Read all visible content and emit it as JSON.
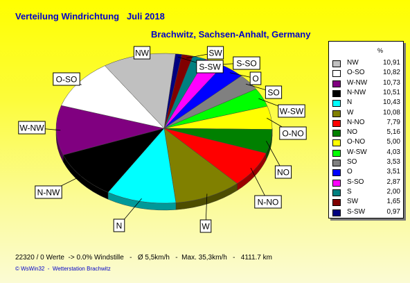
{
  "title": "Verteilung Windrichtung   Juli 2018",
  "subtitle": "Brachwitz, Sachsen-Anhalt, Germany",
  "legend_header": "%",
  "footer_text": "22320 / 0 Werte  -> 0.0% Windstille   -   Ø 5,5km/h   -  Max. 35,3km/h   -   4111.7 km",
  "copyright_text": "© WsWin32  -  Wetterstation Brachwitz",
  "chart_data": {
    "type": "pie",
    "title": "Verteilung Windrichtung   Juli 2018",
    "subtitle": "Brachwitz, Sachsen-Anhalt, Germany",
    "legend_position": "right",
    "slices": [
      {
        "label": "NW",
        "value": 10.91,
        "value_text": "10,91",
        "color": "#c0c0c0"
      },
      {
        "label": "O-SO",
        "value": 10.82,
        "value_text": "10,82",
        "color": "#ffffff"
      },
      {
        "label": "W-NW",
        "value": 10.73,
        "value_text": "10,73",
        "color": "#800080"
      },
      {
        "label": "N-NW",
        "value": 10.51,
        "value_text": "10,51",
        "color": "#000000"
      },
      {
        "label": "N",
        "value": 10.43,
        "value_text": "10,43",
        "color": "#00ffff"
      },
      {
        "label": "W",
        "value": 10.08,
        "value_text": "10,08",
        "color": "#808000"
      },
      {
        "label": "N-NO",
        "value": 7.79,
        "value_text": "7,79",
        "color": "#ff0000"
      },
      {
        "label": "NO",
        "value": 5.16,
        "value_text": "5,16",
        "color": "#008000"
      },
      {
        "label": "O-NO",
        "value": 5.0,
        "value_text": "5,00",
        "color": "#ffff00"
      },
      {
        "label": "W-SW",
        "value": 4.03,
        "value_text": "4,03",
        "color": "#00ff00"
      },
      {
        "label": "SO",
        "value": 3.53,
        "value_text": "3,53",
        "color": "#808080"
      },
      {
        "label": "O",
        "value": 3.51,
        "value_text": "3,51",
        "color": "#0000ff"
      },
      {
        "label": "S-SO",
        "value": 2.87,
        "value_text": "2,87",
        "color": "#ff00ff"
      },
      {
        "label": "S",
        "value": 2.0,
        "value_text": "2,00",
        "color": "#008080"
      },
      {
        "label": "SW",
        "value": 1.65,
        "value_text": "1,65",
        "color": "#800000"
      },
      {
        "label": "S-SW",
        "value": 0.97,
        "value_text": "0,97",
        "color": "#000080"
      }
    ],
    "pie_order": [
      "S-SW",
      "SW",
      "S",
      "S-SO",
      "O",
      "SO",
      "W-SW",
      "O-NO",
      "NO",
      "N-NO",
      "W",
      "N",
      "N-NW",
      "W-NW",
      "O-SO",
      "NW"
    ],
    "outside_labels": [
      "NW",
      "SW",
      "S-SW",
      "S-SO",
      "O",
      "SO",
      "W-SW",
      "O-NO",
      "NO",
      "N-NO",
      "W",
      "N",
      "N-NW",
      "W-NW",
      "O-SO"
    ]
  }
}
